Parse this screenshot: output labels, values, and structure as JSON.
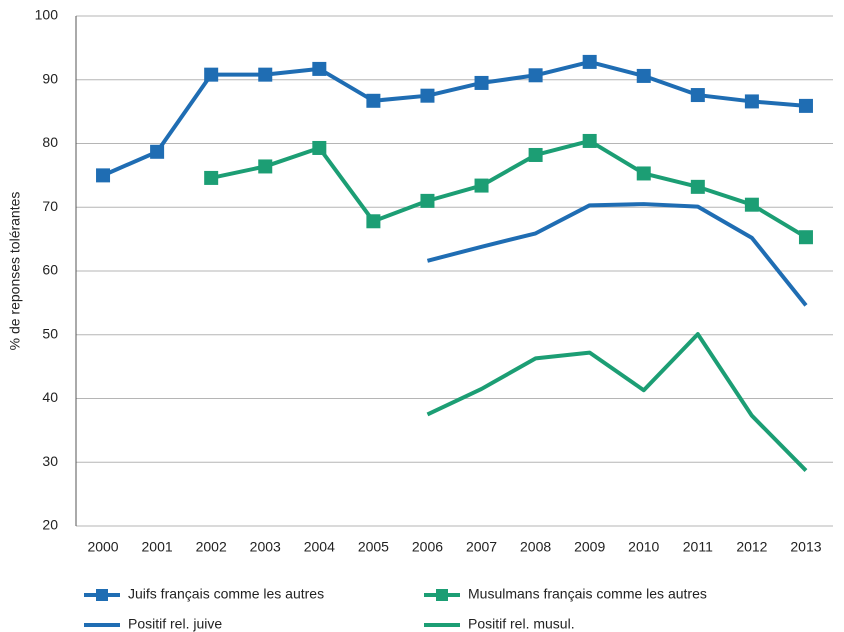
{
  "chart_data": {
    "type": "line",
    "y_label": "% de reponses tolérantes",
    "categories": [
      "2000",
      "2001",
      "2002",
      "2003",
      "2004",
      "2005",
      "2006",
      "2007",
      "2008",
      "2009",
      "2010",
      "2011",
      "2012",
      "2013"
    ],
    "series": [
      {
        "name": "Juifs français comme les autres",
        "color": "#1f6db3",
        "marker": true,
        "values": [
          75,
          78.7,
          90.8,
          90.8,
          91.7,
          86.7,
          87.5,
          89.5,
          90.7,
          92.8,
          90.6,
          87.6,
          86.6,
          85.9
        ]
      },
      {
        "name": "Musulmans français comme les autres",
        "color": "#1c9e74",
        "marker": true,
        "values": [
          null,
          null,
          74.6,
          76.4,
          79.3,
          67.8,
          71,
          73.4,
          78.2,
          80.4,
          75.3,
          73.2,
          70.4,
          65.3
        ]
      },
      {
        "name": "Positif rel. juive",
        "color": "#1f6db3",
        "marker": false,
        "values": [
          null,
          null,
          null,
          null,
          null,
          null,
          61.6,
          63.8,
          65.9,
          70.3,
          70.5,
          70.1,
          65.2,
          54.6
        ]
      },
      {
        "name": "Positif rel. musul.",
        "color": "#1c9e74",
        "marker": false,
        "values": [
          null,
          null,
          null,
          null,
          null,
          null,
          37.5,
          41.5,
          46.3,
          47.2,
          41.3,
          50.1,
          37.3,
          28.7
        ]
      }
    ],
    "ylim": [
      20,
      100
    ],
    "yticks": [
      20,
      30,
      40,
      50,
      60,
      70,
      80,
      90,
      100
    ],
    "grid": true
  }
}
